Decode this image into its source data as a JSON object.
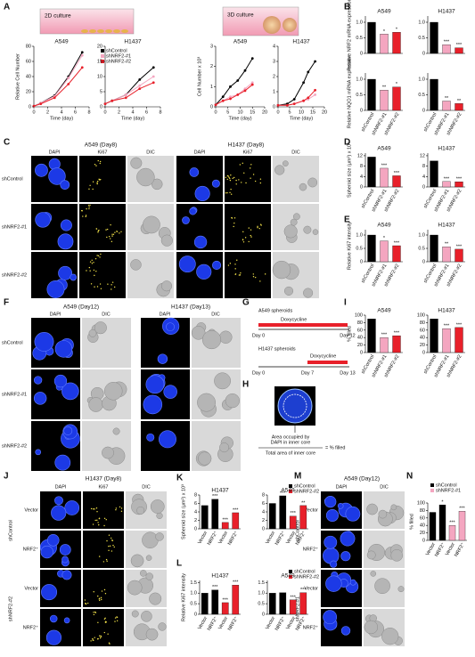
{
  "figure": {
    "A": {
      "label": "A",
      "culture_2d": "2D culture",
      "culture_3d": "3D culture"
    },
    "B": {
      "label": "B"
    },
    "C": {
      "label": "C",
      "header_1": "A549 (Day8)",
      "header_2": "H1437 (Day8)",
      "columns": [
        "DAPI",
        "Ki67",
        "DIC"
      ],
      "rows": [
        "shControl",
        "shNRF2-#1",
        "shNRF2-#2"
      ]
    },
    "D": {
      "label": "D"
    },
    "E": {
      "label": "E"
    },
    "F": {
      "label": "F",
      "header_1": "A549 (Day12)",
      "header_2": "H1437 (Day13)",
      "columns": [
        "DAPI",
        "DIC"
      ],
      "rows": [
        "shControl",
        "shNRF2-#1",
        "shNRF2-#2"
      ]
    },
    "G": {
      "label": "G",
      "a549": "A549 spheroids",
      "h1437": "H1437 spheroids",
      "drug": "Doxycycline",
      "a549_days": [
        "Day 0",
        "Day 12"
      ],
      "h1437_days": [
        "Day 0",
        "Day 7",
        "Day 13"
      ]
    },
    "H": {
      "label": "H",
      "numerator": [
        "Area occupied by",
        "DAPI in inner core"
      ],
      "denominator": "Total area of inner core",
      "result": "= % filled"
    },
    "I": {
      "label": "I"
    },
    "J": {
      "label": "J",
      "header": "H1437 (Day8)",
      "columns": [
        "DAPI",
        "Ki67",
        "DIC"
      ],
      "groups": [
        "shControl",
        "shNRF2-#2"
      ],
      "rows": [
        "Vector",
        "NRF2⁺"
      ]
    },
    "K": {
      "label": "K"
    },
    "L": {
      "label": "L"
    },
    "M": {
      "label": "M",
      "header": "A549 (Day12)",
      "columns": [
        "DAPI",
        "DIC"
      ],
      "groups": [
        "shControl",
        "shNRF2-#1"
      ],
      "rows": [
        "Vector",
        "NRF2⁺"
      ]
    },
    "N": {
      "label": "N"
    }
  },
  "chart_data": [
    {
      "type": "line",
      "title": "A549",
      "xlabel": "Time (day)",
      "ylabel": "Relative Cell Number",
      "x": [
        0,
        1,
        3,
        5,
        7
      ],
      "xlim": [
        0,
        8
      ],
      "xticks": [
        0,
        2,
        4,
        6,
        8
      ],
      "ylim": [
        0,
        80
      ],
      "yticks": [
        0,
        20,
        40,
        60,
        80
      ],
      "series": [
        {
          "color": "#000000",
          "values": [
            1,
            5,
            15,
            40,
            72
          ]
        },
        {
          "color": "#f4a6c0",
          "values": [
            1,
            5,
            14,
            38,
            68
          ]
        },
        {
          "color": "#e8202a",
          "values": [
            1,
            4,
            12,
            30,
            52
          ]
        }
      ]
    },
    {
      "type": "line",
      "title": "H1437",
      "xlabel": "Time (day)",
      "x": [
        0,
        1,
        3,
        5,
        7
      ],
      "xlim": [
        0,
        8
      ],
      "xticks": [
        0,
        2,
        4,
        6,
        8
      ],
      "ylim": [
        0,
        20
      ],
      "yticks": [
        0,
        5,
        10,
        15,
        20
      ],
      "legend_position": "upper left",
      "series": [
        {
          "name": "shControl",
          "color": "#000000",
          "values": [
            1,
            2,
            4,
            9,
            13
          ]
        },
        {
          "name": "shNRF2-#1",
          "color": "#f4a6c0",
          "values": [
            1,
            2,
            4,
            7,
            10
          ]
        },
        {
          "name": "shNRF2-#2",
          "color": "#e8202a",
          "values": [
            1,
            2,
            3,
            6,
            8
          ]
        }
      ]
    },
    {
      "type": "line",
      "title": "A549",
      "xlabel": "Time (day)",
      "ylabel": "Cell Number x 10³",
      "x": [
        0,
        3,
        6,
        9,
        12,
        15
      ],
      "xlim": [
        0,
        20
      ],
      "xticks": [
        0,
        5,
        10,
        15,
        20
      ],
      "ylim": [
        0,
        3
      ],
      "yticks": [
        0,
        1,
        2,
        3
      ],
      "series": [
        {
          "color": "#000000",
          "values": [
            0.1,
            0.5,
            1,
            1.3,
            1.8,
            2.4
          ]
        },
        {
          "color": "#f4a6c0",
          "values": [
            0.1,
            0.3,
            0.5,
            0.6,
            0.9,
            1.2
          ]
        },
        {
          "color": "#e8202a",
          "values": [
            0.1,
            0.3,
            0.4,
            0.6,
            0.8,
            1.1
          ]
        }
      ]
    },
    {
      "type": "line",
      "title": "H1437",
      "xlabel": "Time (day)",
      "x": [
        0,
        4,
        7,
        11,
        13,
        16
      ],
      "xlim": [
        0,
        20
      ],
      "xticks": [
        0,
        5,
        10,
        15,
        20
      ],
      "ylim": [
        0,
        4
      ],
      "yticks": [
        0,
        1,
        2,
        3,
        4
      ],
      "series": [
        {
          "color": "#000000",
          "values": [
            0.1,
            0.2,
            0.5,
            1.6,
            2.3,
            3
          ]
        },
        {
          "color": "#f4a6c0",
          "values": [
            0.1,
            0.1,
            0.2,
            0.4,
            0.5,
            0.8
          ]
        },
        {
          "color": "#e8202a",
          "values": [
            0.1,
            0.1,
            0.2,
            0.4,
            0.6,
            1.1
          ]
        }
      ]
    },
    {
      "type": "bar",
      "title": "A549",
      "ylabel": "Relative NRF2 mRNA expression",
      "categories": [
        null,
        null,
        null
      ],
      "values": [
        1,
        0.62,
        0.68
      ],
      "colors": [
        "#000000",
        "#f4a6c0",
        "#e8202a"
      ],
      "ylim": [
        0,
        1.2
      ],
      "yticks": [
        0,
        0.5,
        {
          "value": 1,
          "label": "1.0"
        }
      ],
      "annotations": [
        null,
        "*",
        "*"
      ]
    },
    {
      "type": "bar",
      "title": "H1437",
      "categories": [
        null,
        null,
        null
      ],
      "values": [
        1,
        0.28,
        0.18
      ],
      "colors": [
        "#000000",
        "#f4a6c0",
        "#e8202a"
      ],
      "ylim": [
        0,
        1.2
      ],
      "yticks": [
        0,
        0.5,
        {
          "value": 1,
          "label": "1.0"
        }
      ],
      "annotations": [
        null,
        "***",
        "***"
      ]
    },
    {
      "type": "bar",
      "ylabel": "Relative NQO1 mRNA expression",
      "categories": [
        "shControl",
        "shNRF2-#1",
        "shNRF2-#2"
      ],
      "values": [
        1,
        0.65,
        0.75
      ],
      "colors": [
        "#000000",
        "#f4a6c0",
        "#e8202a"
      ],
      "ylim": [
        0,
        1.2
      ],
      "yticks": [
        0,
        0.5,
        {
          "value": 1,
          "label": "1.0"
        }
      ],
      "annotations": [
        null,
        "**",
        "*"
      ]
    },
    {
      "type": "bar",
      "categories": [
        "shControl",
        "shNRF2-#1",
        "shNRF2-#2"
      ],
      "values": [
        1,
        0.3,
        0.22
      ],
      "colors": [
        "#000000",
        "#f4a6c0",
        "#e8202a"
      ],
      "ylim": [
        0,
        1.2
      ],
      "yticks": [
        0,
        0.5,
        {
          "value": 1,
          "label": "1.0"
        }
      ],
      "annotations": [
        null,
        "**",
        "**"
      ]
    },
    {
      "type": "bar",
      "title": "A549",
      "ylabel": "Spheroid size (μm²) x 10³",
      "categories": [
        "shControl",
        "shNRF2-#1",
        "shNRF2-#2"
      ],
      "values": [
        11.5,
        7.2,
        4.3
      ],
      "colors": [
        "#000000",
        "#f4a6c0",
        "#e8202a"
      ],
      "ylim": [
        0,
        13
      ],
      "yticks": [
        0,
        4,
        8,
        12
      ],
      "annotations": [
        null,
        "***",
        "***"
      ]
    },
    {
      "type": "bar",
      "title": "H1437",
      "categories": [
        "shControl",
        "shNRF2-#1",
        "shNRF2-#2"
      ],
      "values": [
        10,
        2.1,
        2
      ],
      "colors": [
        "#000000",
        "#f4a6c0",
        "#e8202a"
      ],
      "ylim": [
        0,
        13
      ],
      "yticks": [
        0,
        4,
        8,
        12
      ],
      "annotations": [
        null,
        "***",
        "***"
      ]
    },
    {
      "type": "bar",
      "title": "A549",
      "ylabel": "Relative Ki67 intensity",
      "categories": [
        "shControl",
        "shNRF2-#1",
        "shNRF2-#2"
      ],
      "values": [
        1,
        0.78,
        0.6
      ],
      "colors": [
        "#000000",
        "#f4a6c0",
        "#e8202a"
      ],
      "ylim": [
        0,
        1.2
      ],
      "yticks": [
        0,
        0.5,
        {
          "value": 1,
          "label": "1.0"
        }
      ],
      "annotations": [
        null,
        "*",
        "***"
      ]
    },
    {
      "type": "bar",
      "title": "H1437",
      "categories": [
        "shControl",
        "shNRF2-#1",
        "shNRF2-#2"
      ],
      "values": [
        1,
        0.56,
        0.47
      ],
      "colors": [
        "#000000",
        "#f4a6c0",
        "#e8202a"
      ],
      "ylim": [
        0,
        1.2
      ],
      "yticks": [
        0,
        0.5,
        {
          "value": 1,
          "label": "1.0"
        }
      ],
      "annotations": [
        null,
        "**",
        "***"
      ]
    },
    {
      "type": "bar",
      "title": "A549",
      "ylabel": "% filled",
      "categories": [
        "shControl",
        "shNRF2-#1",
        "shNRF2-#2"
      ],
      "values": [
        90,
        40,
        45
      ],
      "colors": [
        "#000000",
        "#f4a6c0",
        "#e8202a"
      ],
      "ylim": [
        0,
        100
      ],
      "yticks": [
        0,
        20,
        40,
        60,
        80,
        100
      ],
      "annotations": [
        null,
        "***",
        "***"
      ]
    },
    {
      "type": "bar",
      "title": "H1437",
      "categories": [
        "shControl",
        "shNRF2-#1",
        "shNRF2-#2"
      ],
      "values": [
        90,
        64,
        67
      ],
      "colors": [
        "#000000",
        "#f4a6c0",
        "#e8202a"
      ],
      "ylim": [
        0,
        100
      ],
      "yticks": [
        0,
        20,
        40,
        60,
        80,
        100
      ],
      "annotations": [
        null,
        "***",
        "***"
      ]
    },
    {
      "type": "bar",
      "title": "H1437",
      "ylabel": "Spheroid size (μm²) x 10³",
      "categories": [
        "Vector",
        "NRF2⁺",
        "Vector",
        "NRF2⁺"
      ],
      "values": [
        5.5,
        7,
        1.5,
        3.8
      ],
      "colors": [
        "#000000",
        "#000000",
        "#e8202a",
        "#e8202a"
      ],
      "ylim": [
        0,
        8
      ],
      "yticks": [
        0,
        2,
        4,
        6,
        8
      ],
      "annotations": [
        null,
        "***",
        "***",
        "***"
      ]
    },
    {
      "type": "bar",
      "title": "A549",
      "categories": [
        "Vector",
        "NRF2⁺",
        "Vector",
        "NRF2⁺"
      ],
      "values": [
        6,
        7.8,
        3,
        5.5
      ],
      "colors": [
        "#000000",
        "#000000",
        "#e8202a",
        "#e8202a"
      ],
      "ylim": [
        0,
        8
      ],
      "yticks": [
        0,
        2,
        4,
        6,
        8
      ],
      "annotations": [
        null,
        "***",
        "***",
        "**"
      ],
      "legend_position": "upper right",
      "legend": [
        {
          "name": "shControl",
          "color": "#000000"
        },
        {
          "name": "shNRF2-#2",
          "color": "#e8202a"
        }
      ]
    },
    {
      "type": "bar",
      "title": "H1437",
      "ylabel": "Relative Ki67 intensity",
      "categories": [
        "Vector",
        "NRF2⁺",
        "Vector",
        "NRF2⁺"
      ],
      "values": [
        1,
        1.15,
        0.55,
        1.38
      ],
      "colors": [
        "#000000",
        "#000000",
        "#e8202a",
        "#e8202a"
      ],
      "ylim": [
        0,
        1.6
      ],
      "yticks": [
        0,
        0.5,
        {
          "value": 1,
          "label": "1.0"
        },
        1.5
      ],
      "annotations": [
        null,
        "***",
        "***",
        "***"
      ]
    },
    {
      "type": "bar",
      "title": "A549",
      "categories": [
        "Vector",
        "NRF2⁺",
        "Vector",
        "NRF2⁺"
      ],
      "values": [
        1,
        1.02,
        0.68,
        1.02
      ],
      "colors": [
        "#000000",
        "#000000",
        "#e8202a",
        "#e8202a"
      ],
      "ylim": [
        0,
        1.6
      ],
      "yticks": [
        0,
        0.5,
        {
          "value": 1,
          "label": "1.0"
        },
        1.5
      ],
      "annotations": [
        null,
        null,
        "***",
        "***"
      ],
      "legend_position": "upper right",
      "legend": [
        {
          "name": "shControl",
          "color": "#000000"
        },
        {
          "name": "shNRF2-#2",
          "color": "#e8202a"
        }
      ]
    },
    {
      "type": "bar",
      "ylabel": "% filled",
      "categories": [
        "Vector",
        "NRF2⁺",
        "Vector",
        "NRF2⁺"
      ],
      "values": [
        75,
        95,
        40,
        78
      ],
      "colors": [
        "#000000",
        "#000000",
        "#f4a6c0",
        "#f4a6c0"
      ],
      "ylim": [
        0,
        100
      ],
      "yticks": [
        0,
        20,
        40,
        60,
        80,
        100
      ],
      "annotations": [
        null,
        "*",
        "***",
        "***"
      ],
      "legend_position": "top",
      "legend": [
        {
          "name": "shControl",
          "color": "#000000"
        },
        {
          "name": "shNRF2-#1",
          "color": "#f4a6c0"
        }
      ]
    }
  ]
}
